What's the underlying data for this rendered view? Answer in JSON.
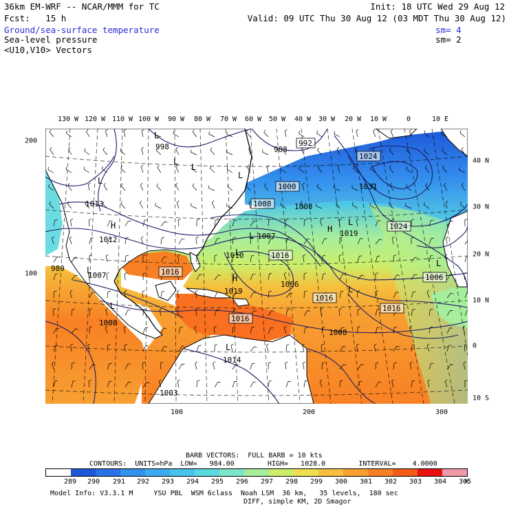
{
  "header": {
    "model_line": "36km EM-WRF -- NCAR/MMM for TC",
    "init_line": "Init: 18 UTC Wed 29 Aug 12",
    "fcst_line": "Fcst:   15 h",
    "valid_line": "Valid: 09 UTC Thu 30 Aug 12 (03 MDT Thu 30 Aug 12)",
    "field1": "Ground/sea-surface temperature",
    "field1_sm": "sm= 4",
    "field2": "Sea-level pressure",
    "field2_sm": "sm= 2",
    "field3": "<U10,V10> Vectors"
  },
  "colors": {
    "field1_text": "#2b2bd6",
    "land": "#ffffff",
    "contour": "#1a1a66"
  },
  "map": {
    "lon_labels": [
      "130 W",
      "120 W",
      "110 W",
      "100 W",
      "90 W",
      "80 W",
      "70 W",
      "60 W",
      "50 W",
      "40 W",
      "30 W",
      "20 W",
      "10 W",
      "0",
      "10 E"
    ],
    "lat_labels": [
      "40 N",
      "30 N",
      "20 N",
      "10 N",
      "0",
      "10 S"
    ],
    "y_grid_labels": [
      "200",
      "100"
    ],
    "x_grid_labels": [
      "100",
      "200",
      "300"
    ],
    "pressure_labels": [
      "998",
      "983",
      "992",
      "1024",
      "1000",
      "1031",
      "1008",
      "1008",
      "1013",
      "1024",
      "1012",
      "1007",
      "1019",
      "1010",
      "1016",
      "989",
      "1007",
      "1016",
      "1019",
      "1006",
      "1016",
      "1016",
      "1006",
      "1008",
      "1016",
      "1008",
      "1014",
      "1003"
    ],
    "high_low_marks": [
      "L",
      "L",
      "L",
      "L",
      "L",
      "H",
      "H",
      "L",
      "L",
      "L",
      "L",
      "H",
      "L",
      "L",
      "L",
      "L"
    ]
  },
  "legend": {
    "barb_line": "BARB VECTORS:  FULL BARB = 10 kts",
    "contours_line": "CONTOURS:  UNITS=hPa  LOW=   984.00        HIGH=   1028.0        INTERVAL=    4.0000",
    "units": "K",
    "colorbar_labels": [
      "289",
      "290",
      "291",
      "292",
      "293",
      "294",
      "295",
      "296",
      "297",
      "298",
      "299",
      "300",
      "301",
      "302",
      "303",
      "304",
      "305"
    ],
    "colorbar_colors": [
      "#ffffff",
      "#1e56d8",
      "#2a72e6",
      "#3490ee",
      "#3eaaf0",
      "#46c4ec",
      "#5cd8e0",
      "#7ee6c8",
      "#a6ee9c",
      "#ccee6a",
      "#eee050",
      "#f6c03e",
      "#f8a032",
      "#f88024",
      "#f45a18",
      "#e81010",
      "#f09aa8"
    ],
    "model_info": "Model Info: V3.3.1 M     YSU PBL  WSM 6class  Noah LSM  36 km,   35 levels,  180 sec",
    "model_info2": "DIFF, simple KM, 2D Smagor"
  }
}
